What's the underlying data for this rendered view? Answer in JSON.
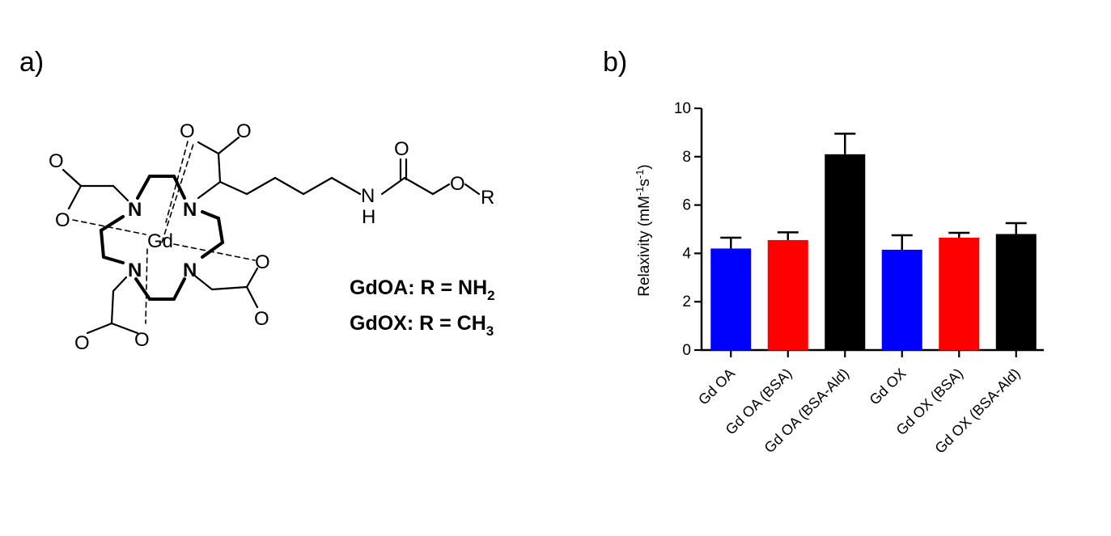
{
  "panels": {
    "a": "a)",
    "b": "b)"
  },
  "structure": {
    "metal": "Gd",
    "nitrogen": "N",
    "oxygen": "O",
    "nh_n": "N",
    "nh_h": "H",
    "r_group": "R",
    "rows": [
      {
        "name": "GdOA: R = NH",
        "sub": "2"
      },
      {
        "name": "GdOX: R = CH",
        "sub": "3"
      }
    ]
  },
  "chart_data": {
    "type": "bar",
    "categories": [
      "Gd OA",
      "Gd OA (BSA)",
      "Gd OA (BSA-Ald)",
      "Gd OX",
      "Gd OX (BSA)",
      "Gd OX (BSA-Ald)"
    ],
    "values": [
      4.2,
      4.55,
      8.1,
      4.15,
      4.65,
      4.8
    ],
    "errors": [
      0.45,
      0.32,
      0.85,
      0.6,
      0.2,
      0.45
    ],
    "colors": [
      "#0000ff",
      "#ff0000",
      "#000000",
      "#0000ff",
      "#ff0000",
      "#000000"
    ],
    "ylabel": "Relaxivity (mM",
    "ylabel_sup1": "-1",
    "ylabel_mid": "s",
    "ylabel_sup2": "-1",
    "ylabel_end": ")",
    "ylim": [
      0,
      10
    ],
    "yticks": [
      0,
      2,
      4,
      6,
      8,
      10
    ],
    "grid": false,
    "legend": "none"
  }
}
